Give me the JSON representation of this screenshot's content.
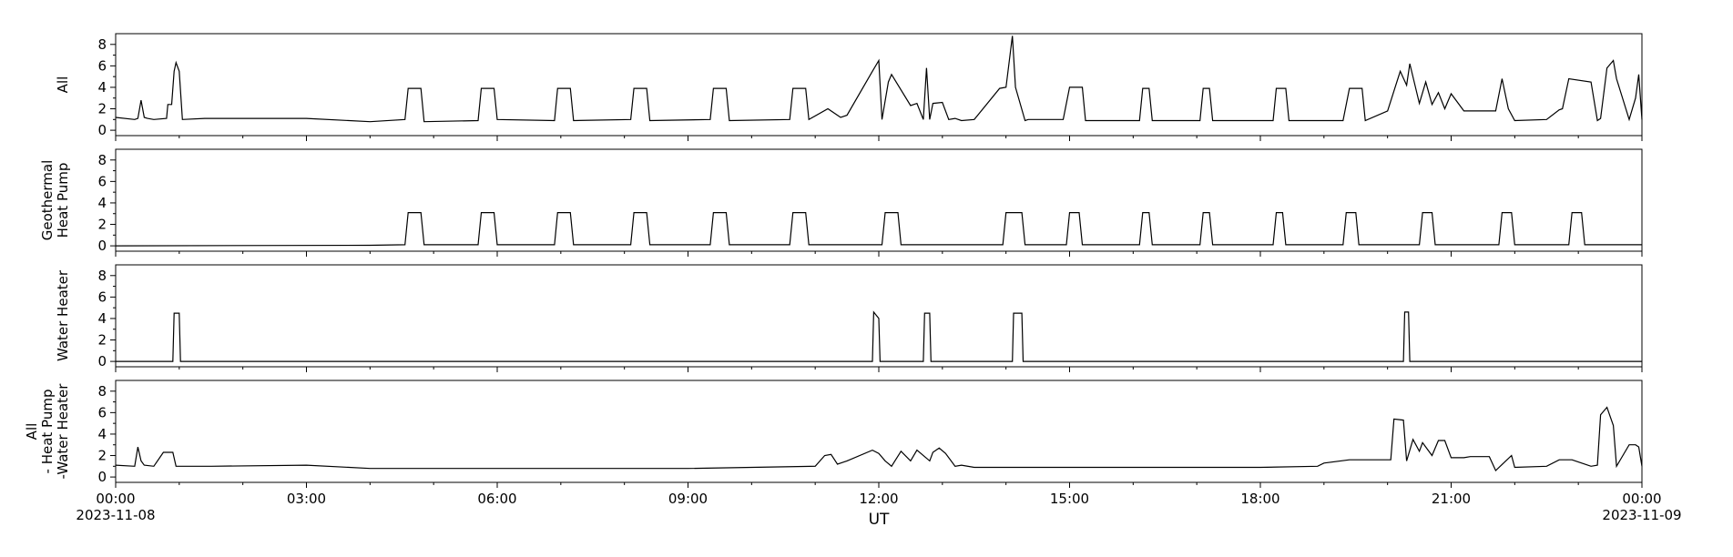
{
  "chart_data": {
    "type": "line",
    "xlabel": "UT",
    "x_axis": {
      "unit": "hours since 2023-11-08 00:00 UT",
      "range": [
        0,
        24
      ],
      "ticks": [
        {
          "hour": 0,
          "label": "00:00",
          "date": "2023-11-08"
        },
        {
          "hour": 3,
          "label": "03:00"
        },
        {
          "hour": 6,
          "label": "06:00"
        },
        {
          "hour": 9,
          "label": "09:00"
        },
        {
          "hour": 12,
          "label": "12:00"
        },
        {
          "hour": 15,
          "label": "15:00"
        },
        {
          "hour": 18,
          "label": "18:00"
        },
        {
          "hour": 21,
          "label": "21:00"
        },
        {
          "hour": 24,
          "label": "00:00",
          "date": "2023-11-09"
        }
      ]
    },
    "panels": [
      {
        "id": "all",
        "ylabel": [
          "All"
        ],
        "ylim": [
          -0.5,
          9
        ],
        "yticks": [
          0,
          2,
          4,
          6,
          8
        ],
        "color": "#000000",
        "x": [
          0,
          0.3,
          0.35,
          0.4,
          0.45,
          0.5,
          0.6,
          0.8,
          0.82,
          0.88,
          0.92,
          0.95,
          1.0,
          1.05,
          1.4,
          3.0,
          4.0,
          4.55,
          4.6,
          4.8,
          4.85,
          5.7,
          5.75,
          5.95,
          6.0,
          6.9,
          6.95,
          7.15,
          7.2,
          8.1,
          8.15,
          8.35,
          8.4,
          9.35,
          9.4,
          9.6,
          9.65,
          10.6,
          10.65,
          10.85,
          10.9,
          11.2,
          11.4,
          11.5,
          11.9,
          12.0,
          12.05,
          12.15,
          12.2,
          12.5,
          12.6,
          12.7,
          12.75,
          12.8,
          12.85,
          13.0,
          13.1,
          13.2,
          13.3,
          13.5,
          13.9,
          14.0,
          14.1,
          14.15,
          14.3,
          14.35,
          14.9,
          15.0,
          15.2,
          15.25,
          16.1,
          16.15,
          16.25,
          16.3,
          17.05,
          17.1,
          17.2,
          17.25,
          18.2,
          18.25,
          18.4,
          18.45,
          19.3,
          19.4,
          19.6,
          19.65,
          20.0,
          20.2,
          20.3,
          20.35,
          20.5,
          20.6,
          20.7,
          20.8,
          20.9,
          21.0,
          21.2,
          21.3,
          21.7,
          21.8,
          21.9,
          22.0,
          22.5,
          22.7,
          22.75,
          22.85,
          23.2,
          23.3,
          23.35,
          23.45,
          23.55,
          23.6,
          23.8,
          23.9,
          23.95,
          24.0
        ],
        "y": [
          1.2,
          1.0,
          1.1,
          2.8,
          1.2,
          1.1,
          1.0,
          1.1,
          2.4,
          2.4,
          5.5,
          6.3,
          5.5,
          1.0,
          1.1,
          1.1,
          0.8,
          1.0,
          3.9,
          3.9,
          0.8,
          0.9,
          3.9,
          3.9,
          1.0,
          0.9,
          3.9,
          3.9,
          0.9,
          1.0,
          3.9,
          3.9,
          0.9,
          1.0,
          3.9,
          3.9,
          0.9,
          1.0,
          3.9,
          3.9,
          1.0,
          2.0,
          1.2,
          1.4,
          5.5,
          6.5,
          1.0,
          4.5,
          5.2,
          2.3,
          2.5,
          1.0,
          5.8,
          1.0,
          2.5,
          2.6,
          1.0,
          1.1,
          0.9,
          1.0,
          3.9,
          4.0,
          8.8,
          4.0,
          0.9,
          1.0,
          1.0,
          4.0,
          4.0,
          0.9,
          0.9,
          3.9,
          3.9,
          0.9,
          0.9,
          3.9,
          3.9,
          0.9,
          0.9,
          3.9,
          3.9,
          0.9,
          0.9,
          3.9,
          3.9,
          0.9,
          1.8,
          5.5,
          4.2,
          6.2,
          2.5,
          4.5,
          2.4,
          3.5,
          2.0,
          3.4,
          1.8,
          1.8,
          1.8,
          4.8,
          2.0,
          0.9,
          1.0,
          1.9,
          2.0,
          4.8,
          4.5,
          0.9,
          1.1,
          5.8,
          6.5,
          4.8,
          1.0,
          3.0,
          5.2,
          1.0
        ]
      },
      {
        "id": "heat-pump",
        "ylabel": [
          "Geothermal",
          "Heat Pump"
        ],
        "ylim": [
          -0.5,
          9
        ],
        "yticks": [
          0,
          2,
          4,
          6,
          8
        ],
        "color": "#000000",
        "x": [
          0,
          4.0,
          4.55,
          4.6,
          4.8,
          4.85,
          5.7,
          5.75,
          5.95,
          6.0,
          6.9,
          6.95,
          7.15,
          7.2,
          8.1,
          8.15,
          8.35,
          8.4,
          9.35,
          9.4,
          9.6,
          9.65,
          10.6,
          10.65,
          10.85,
          10.9,
          12.05,
          12.1,
          12.3,
          12.35,
          13.95,
          14.0,
          14.25,
          14.3,
          14.95,
          15.0,
          15.15,
          15.2,
          16.1,
          16.15,
          16.25,
          16.3,
          17.05,
          17.1,
          17.2,
          17.25,
          18.2,
          18.25,
          18.35,
          18.4,
          19.3,
          19.35,
          19.5,
          19.55,
          20.5,
          20.55,
          20.7,
          20.75,
          21.75,
          21.8,
          21.95,
          22.0,
          22.85,
          22.9,
          23.05,
          23.1,
          24.0
        ],
        "y": [
          0,
          0.05,
          0.1,
          3.1,
          3.1,
          0.1,
          0.1,
          3.1,
          3.1,
          0.1,
          0.1,
          3.1,
          3.1,
          0.1,
          0.1,
          3.1,
          3.1,
          0.1,
          0.1,
          3.1,
          3.1,
          0.1,
          0.1,
          3.1,
          3.1,
          0.1,
          0.1,
          3.1,
          3.1,
          0.1,
          0.1,
          3.1,
          3.1,
          0.1,
          0.1,
          3.1,
          3.1,
          0.1,
          0.1,
          3.1,
          3.1,
          0.1,
          0.1,
          3.1,
          3.1,
          0.1,
          0.1,
          3.1,
          3.1,
          0.1,
          0.1,
          3.1,
          3.1,
          0.1,
          0.1,
          3.1,
          3.1,
          0.1,
          0.1,
          3.1,
          3.1,
          0.1,
          0.1,
          3.1,
          3.1,
          0.1,
          0.1
        ]
      },
      {
        "id": "water-heater",
        "ylabel": [
          "Water Heater"
        ],
        "ylim": [
          -0.5,
          9
        ],
        "yticks": [
          0,
          2,
          4,
          6,
          8
        ],
        "color": "#000000",
        "x": [
          0,
          0.9,
          0.92,
          1.0,
          1.02,
          11.9,
          11.92,
          12.0,
          12.02,
          12.7,
          12.72,
          12.8,
          12.82,
          14.1,
          14.12,
          14.25,
          14.27,
          20.25,
          20.27,
          20.33,
          20.35,
          24.0
        ],
        "y": [
          0,
          0,
          4.5,
          4.5,
          0,
          0,
          4.6,
          4.0,
          0,
          0,
          4.5,
          4.5,
          0,
          0,
          4.5,
          4.5,
          0,
          0,
          4.6,
          4.6,
          0,
          0
        ]
      },
      {
        "id": "residual",
        "ylabel": [
          "All",
          "- Heat Pump",
          "-Water Heater"
        ],
        "ylim": [
          -0.5,
          9
        ],
        "yticks": [
          0,
          2,
          4,
          6,
          8
        ],
        "color": "#000000",
        "x": [
          0,
          0.3,
          0.35,
          0.4,
          0.45,
          0.6,
          0.75,
          0.8,
          0.9,
          0.95,
          1.5,
          3.0,
          4.0,
          6.0,
          9.0,
          11.0,
          11.15,
          11.25,
          11.35,
          11.5,
          11.9,
          12.0,
          12.1,
          12.2,
          12.35,
          12.5,
          12.6,
          12.8,
          12.85,
          12.95,
          13.05,
          13.2,
          13.3,
          13.5,
          15.0,
          17.0,
          18.0,
          18.9,
          19.0,
          19.4,
          19.5,
          20.05,
          20.1,
          20.25,
          20.3,
          20.4,
          20.5,
          20.55,
          20.7,
          20.8,
          20.9,
          21.0,
          21.2,
          21.3,
          21.6,
          21.7,
          21.95,
          22.0,
          22.5,
          22.7,
          22.75,
          22.9,
          23.2,
          23.3,
          23.35,
          23.45,
          23.55,
          23.6,
          23.8,
          23.9,
          23.95,
          24.0
        ],
        "y": [
          1.1,
          1.0,
          2.8,
          1.5,
          1.1,
          1.0,
          2.3,
          2.3,
          2.3,
          1.0,
          1.0,
          1.1,
          0.8,
          0.8,
          0.8,
          1.0,
          2.0,
          2.1,
          1.2,
          1.5,
          2.5,
          2.2,
          1.5,
          1.0,
          2.4,
          1.5,
          2.5,
          1.5,
          2.3,
          2.7,
          2.2,
          1.0,
          1.1,
          0.9,
          0.9,
          0.9,
          0.9,
          1.0,
          1.3,
          1.6,
          1.6,
          1.6,
          5.4,
          5.3,
          1.5,
          3.5,
          2.4,
          3.2,
          2.0,
          3.4,
          3.4,
          1.8,
          1.8,
          1.9,
          1.9,
          0.6,
          2.0,
          0.9,
          1.0,
          1.6,
          1.6,
          1.6,
          1.0,
          1.1,
          5.8,
          6.5,
          4.8,
          1.0,
          3.0,
          3.0,
          2.8,
          1.0
        ]
      }
    ]
  }
}
